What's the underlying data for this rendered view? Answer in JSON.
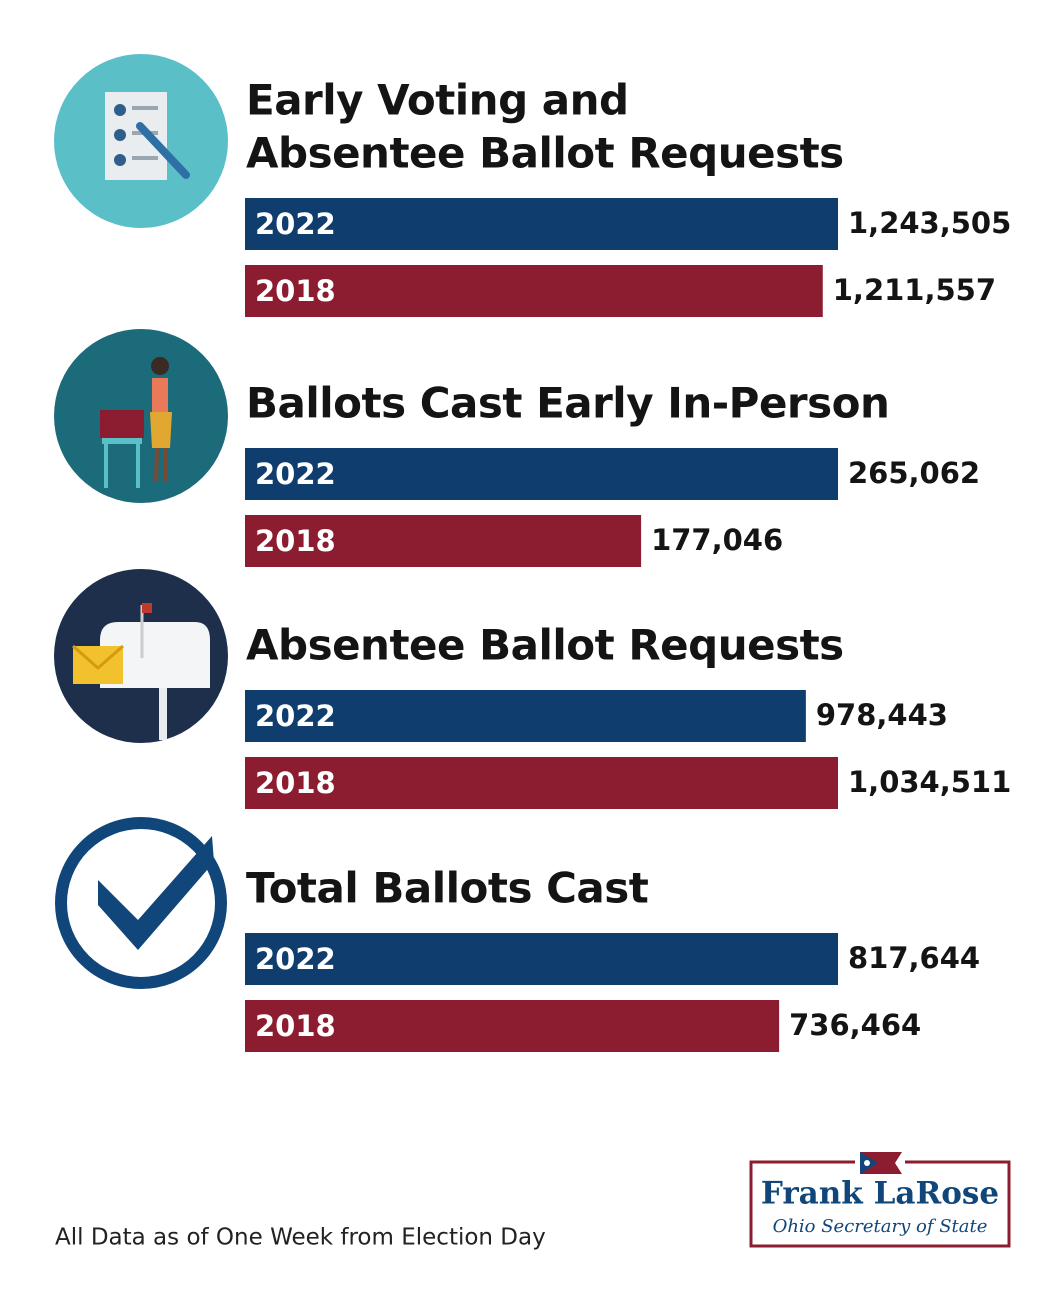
{
  "chart_data": [
    {
      "type": "bar",
      "title": [
        "Early Voting and",
        "Absentee Ballot Requests"
      ],
      "categories": [
        "2022",
        "2018"
      ],
      "values": [
        1243505,
        1211557
      ],
      "value_labels": [
        "1,243,505",
        "1,211,557"
      ],
      "colors": [
        "#0f3e6e",
        "#8c1c2f"
      ]
    },
    {
      "type": "bar",
      "title": [
        "Ballots Cast Early In-Person"
      ],
      "categories": [
        "2022",
        "2018"
      ],
      "values": [
        265062,
        177046
      ],
      "value_labels": [
        "265,062",
        "177,046"
      ],
      "colors": [
        "#0f3e6e",
        "#8c1c2f"
      ]
    },
    {
      "type": "bar",
      "title": [
        "Absentee Ballot Requests"
      ],
      "categories": [
        "2022",
        "2018"
      ],
      "values": [
        978443,
        1034511
      ],
      "value_labels": [
        "978,443",
        "1,034,511"
      ],
      "colors": [
        "#0f3e6e",
        "#8c1c2f"
      ]
    },
    {
      "type": "bar",
      "title": [
        "Total Ballots Cast"
      ],
      "categories": [
        "2022",
        "2018"
      ],
      "values": [
        817644,
        736464
      ],
      "value_labels": [
        "817,644",
        "736,464"
      ],
      "colors": [
        "#0f3e6e",
        "#8c1c2f"
      ]
    }
  ],
  "footnote": "All Data as of One Week from Election Day",
  "logo": {
    "name": "Frank LaRose",
    "subtitle": "Ohio Secretary of State"
  }
}
